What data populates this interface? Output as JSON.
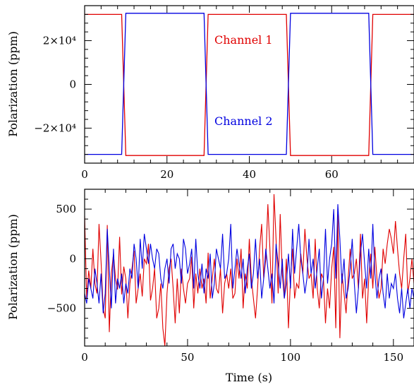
{
  "chart_data": [
    {
      "type": "line",
      "title": "",
      "xlabel": "",
      "ylabel": "Polarization (ppm)",
      "xlim": [
        0,
        80
      ],
      "ylim": [
        -36000,
        36000
      ],
      "x_ticks": [
        "0",
        "20",
        "40",
        "60"
      ],
      "y_ticks": [
        "2×10⁴",
        "0",
        "−2×10⁴"
      ],
      "x_tick_values": [
        0,
        20,
        40,
        60
      ],
      "y_tick_values": [
        20000,
        0,
        -20000
      ],
      "grid": false,
      "legend": "inline-right",
      "series": [
        {
          "name": "Channel 1",
          "color": "#e00000",
          "x": [
            0,
            9,
            10,
            29,
            30,
            49,
            50,
            69,
            70,
            80
          ],
          "y": [
            32000,
            32000,
            -32500,
            -32500,
            32000,
            32000,
            -32500,
            -32500,
            32000,
            32000
          ]
        },
        {
          "name": "Channel 2",
          "color": "#0000e0",
          "x": [
            0,
            9,
            10,
            29,
            30,
            49,
            50,
            69,
            70,
            80
          ],
          "y": [
            -32000,
            -32000,
            32500,
            32500,
            -32000,
            -32000,
            32500,
            32500,
            -32000,
            -32000
          ]
        }
      ]
    },
    {
      "type": "line",
      "title": "",
      "xlabel": "Time (s)",
      "ylabel": "Polarization (ppm)",
      "xlim": [
        0,
        160
      ],
      "ylim": [
        -880,
        700
      ],
      "x_ticks": [
        "0",
        "50",
        "100",
        "150"
      ],
      "y_ticks": [
        "500",
        "0",
        "−500"
      ],
      "x_tick_values": [
        0,
        50,
        100,
        150
      ],
      "y_tick_values": [
        500,
        0,
        -500
      ],
      "grid": false,
      "series": [
        {
          "name": "",
          "color": "#e00000",
          "x": [
            0,
            1,
            2,
            3,
            4,
            5,
            6,
            7,
            8,
            9,
            10,
            11,
            12,
            13,
            14,
            15,
            16,
            17,
            18,
            19,
            20,
            21,
            22,
            23,
            24,
            25,
            26,
            27,
            28,
            29,
            30,
            31,
            32,
            33,
            34,
            35,
            36,
            37,
            38,
            39,
            40,
            41,
            42,
            43,
            44,
            45,
            46,
            47,
            48,
            49,
            50,
            51,
            52,
            53,
            54,
            55,
            56,
            57,
            58,
            59,
            60,
            61,
            62,
            63,
            64,
            65,
            66,
            67,
            68,
            69,
            70,
            71,
            72,
            73,
            74,
            75,
            76,
            77,
            78,
            79,
            80,
            81,
            82,
            83,
            84,
            85,
            86,
            87,
            88,
            89,
            90,
            91,
            92,
            93,
            94,
            95,
            96,
            97,
            98,
            99,
            100,
            101,
            102,
            103,
            104,
            105,
            106,
            107,
            108,
            109,
            110,
            111,
            112,
            113,
            114,
            115,
            116,
            117,
            118,
            119,
            120,
            121,
            122,
            123,
            124,
            125,
            126,
            127,
            128,
            129,
            130,
            131,
            132,
            133,
            134,
            135,
            136,
            137,
            138,
            139,
            140,
            141,
            142,
            143,
            144,
            145,
            146,
            147,
            148,
            149,
            150,
            151,
            152,
            153,
            154,
            155,
            156,
            157,
            158,
            159,
            160
          ],
          "y": [
            430,
            -400,
            -120,
            -300,
            100,
            -250,
            -350,
            350,
            -30,
            -500,
            -600,
            340,
            -740,
            -150,
            50,
            -200,
            -310,
            220,
            -360,
            -80,
            -200,
            -600,
            -250,
            -100,
            80,
            -450,
            -300,
            -150,
            -380,
            0,
            -50,
            150,
            -420,
            -300,
            -100,
            -600,
            -500,
            -250,
            -700,
            -880,
            -350,
            -100,
            0,
            -300,
            -650,
            -200,
            -550,
            -100,
            -300,
            -450,
            -250,
            -200,
            20,
            -500,
            -150,
            -350,
            -100,
            -300,
            -200,
            -450,
            60,
            -400,
            -200,
            0,
            -300,
            -350,
            -100,
            -550,
            -250,
            -150,
            -300,
            -100,
            -400,
            -350,
            0,
            -200,
            100,
            -500,
            -150,
            -300,
            200,
            -200,
            -400,
            -600,
            -300,
            100,
            350,
            -200,
            0,
            550,
            100,
            -450,
            650,
            200,
            -350,
            450,
            -150,
            -400,
            0,
            -700,
            -200,
            100,
            -400,
            -250,
            -300,
            50,
            -150,
            300,
            0,
            -200,
            -150,
            -400,
            200,
            -300,
            -500,
            -150,
            -200,
            -650,
            -300,
            -500,
            -100,
            120,
            -700,
            450,
            -800,
            -150,
            -350,
            -550,
            -200,
            100,
            -200,
            -150,
            0,
            -300,
            250,
            -400,
            -200,
            -650,
            -200,
            50,
            -300,
            120,
            -200,
            -400,
            -300,
            100,
            -50,
            150,
            300,
            200,
            50,
            380,
            100,
            -150,
            -300,
            0,
            250,
            -350,
            -200,
            0,
            -250
          ]
        },
        {
          "name": "",
          "color": "#0000e0",
          "x": [
            0,
            1,
            2,
            3,
            4,
            5,
            6,
            7,
            8,
            9,
            10,
            11,
            12,
            13,
            14,
            15,
            16,
            17,
            18,
            19,
            20,
            21,
            22,
            23,
            24,
            25,
            26,
            27,
            28,
            29,
            30,
            31,
            32,
            33,
            34,
            35,
            36,
            37,
            38,
            39,
            40,
            41,
            42,
            43,
            44,
            45,
            46,
            47,
            48,
            49,
            50,
            51,
            52,
            53,
            54,
            55,
            56,
            57,
            58,
            59,
            60,
            61,
            62,
            63,
            64,
            65,
            66,
            67,
            68,
            69,
            70,
            71,
            72,
            73,
            74,
            75,
            76,
            77,
            78,
            79,
            80,
            81,
            82,
            83,
            84,
            85,
            86,
            87,
            88,
            89,
            90,
            91,
            92,
            93,
            94,
            95,
            96,
            97,
            98,
            99,
            100,
            101,
            102,
            103,
            104,
            105,
            106,
            107,
            108,
            109,
            110,
            111,
            112,
            113,
            114,
            115,
            116,
            117,
            118,
            119,
            120,
            121,
            122,
            123,
            124,
            125,
            126,
            127,
            128,
            129,
            130,
            131,
            132,
            133,
            134,
            135,
            136,
            137,
            138,
            139,
            140,
            141,
            142,
            143,
            144,
            145,
            146,
            147,
            148,
            149,
            150,
            151,
            152,
            153,
            154,
            155,
            156,
            157,
            158,
            159,
            160
          ],
          "y": [
            -350,
            -450,
            -200,
            -300,
            -400,
            -100,
            -250,
            -450,
            -150,
            -550,
            -350,
            300,
            -100,
            -500,
            100,
            -450,
            -200,
            -300,
            -150,
            -450,
            -250,
            -350,
            -100,
            -200,
            150,
            0,
            -300,
            200,
            -100,
            250,
            100,
            -50,
            150,
            0,
            -100,
            100,
            50,
            -200,
            -300,
            -100,
            0,
            -250,
            100,
            150,
            -100,
            50,
            0,
            -250,
            200,
            100,
            -150,
            -50,
            100,
            -300,
            200,
            -150,
            -300,
            -50,
            -350,
            -100,
            -200,
            50,
            -400,
            -250,
            100,
            0,
            -100,
            250,
            -200,
            -150,
            0,
            350,
            -300,
            -100,
            100,
            -50,
            -200,
            0,
            -350,
            -100,
            50,
            -300,
            -150,
            200,
            -200,
            0,
            -400,
            -200,
            100,
            -100,
            -300,
            -150,
            -450,
            150,
            -50,
            -300,
            0,
            -400,
            -250,
            50,
            -300,
            300,
            -150,
            100,
            350,
            0,
            -150,
            -350,
            -200,
            200,
            -150,
            0,
            -300,
            -100,
            100,
            -400,
            -200,
            300,
            -250,
            0,
            150,
            500,
            -200,
            550,
            200,
            -250,
            0,
            -400,
            -300,
            -100,
            200,
            -250,
            -550,
            -300,
            50,
            250,
            -50,
            -300,
            100,
            -200,
            350,
            -150,
            -400,
            -200,
            -100,
            -350,
            -500,
            -150,
            -400,
            -250,
            -300,
            -150,
            -400,
            -550,
            -300,
            -600,
            -450,
            -300,
            -500,
            -300,
            -400
          ]
        }
      ]
    }
  ]
}
